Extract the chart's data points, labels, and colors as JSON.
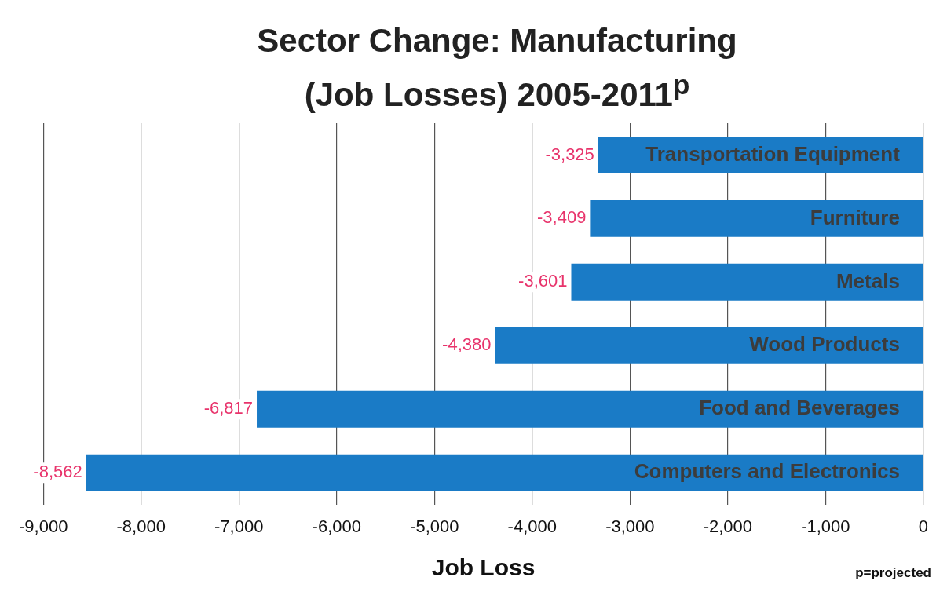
{
  "chart_data": {
    "type": "bar",
    "orientation": "horizontal",
    "title": "Sector Change: Manufacturing\n(Job Losses) 2005-2011$^{p}$",
    "xlabel": "Job Loss",
    "categories": [
      "Transportation Equipment",
      "Furniture",
      "Metals",
      "Wood Products",
      "Food and Beverages",
      "Computers and Electronics"
    ],
    "values": [
      -3325,
      -3409,
      -3601,
      -4380,
      -6817,
      -8562
    ],
    "value_labels": [
      "-3,325",
      "-3,409",
      "-3,601",
      "-4,380",
      "-6,817",
      "-8,562"
    ],
    "color": "#1a7bc6",
    "xlim": [
      -9000,
      0
    ],
    "xticks": [
      {
        "value": -9000,
        "label": "-9,000"
      },
      {
        "value": -8000,
        "label": "-8,000"
      },
      {
        "value": -7000,
        "label": "-7,000"
      },
      {
        "value": -6000,
        "label": "-6,000"
      },
      {
        "value": -5000,
        "label": "-5,000"
      },
      {
        "value": -4000,
        "label": "-4,000"
      },
      {
        "value": -3000,
        "label": "-3,000"
      },
      {
        "value": -2000,
        "label": "-2,000"
      },
      {
        "value": -1000,
        "label": "-1,000"
      },
      0
    ],
    "grid": "x",
    "legend": false,
    "annotations": [
      "p=projected"
    ]
  }
}
